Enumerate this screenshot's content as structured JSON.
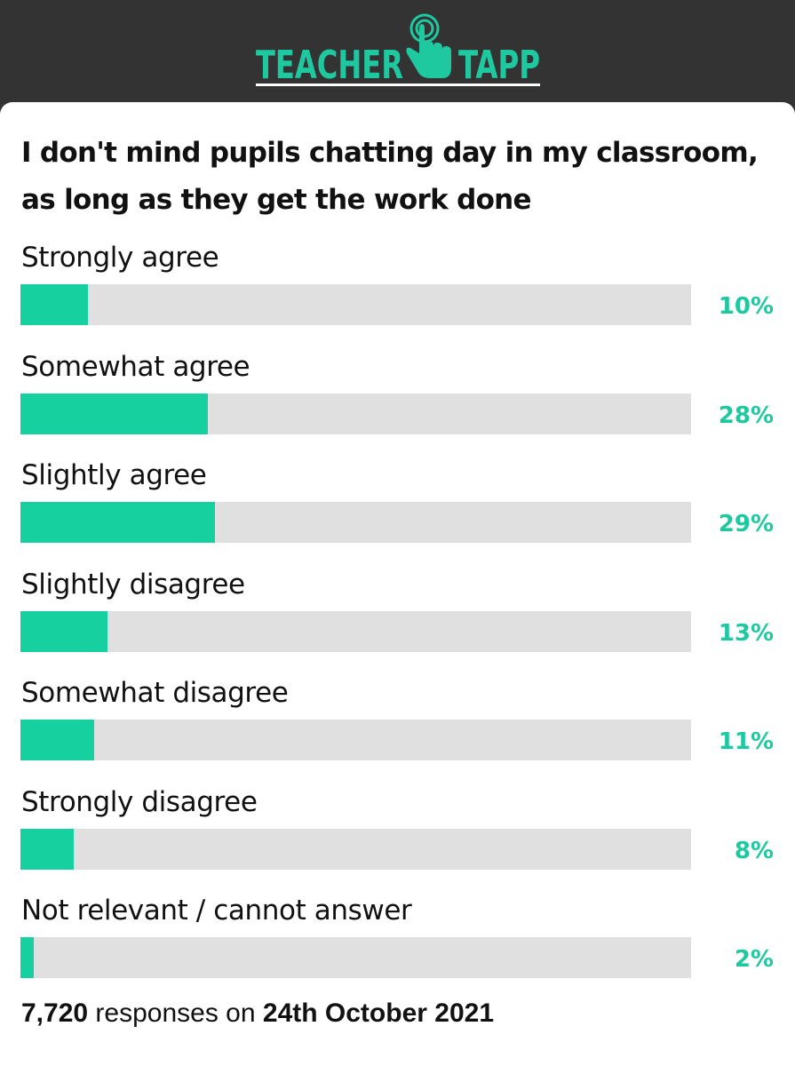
{
  "header": {
    "brand": "TEACHER TAPP",
    "brand_left": "TEACHER",
    "brand_right": "TAPP",
    "brand_color": "#1ec9a0",
    "background_color": "#333333",
    "icon": "tap-finger-icon"
  },
  "question": "I don't mind pupils chatting day in my classroom, as long as they get the work done",
  "footer": {
    "count": "7,720",
    "middle": "responses on",
    "date": "24th October 2021"
  },
  "colors": {
    "bar_fill": "#16d0a0",
    "bar_track": "#e0e0e0",
    "percent_text": "#1ec9a0"
  },
  "chart_data": {
    "type": "bar",
    "orientation": "horizontal",
    "title": "I don't mind pupils chatting day in my classroom, as long as they get the work done",
    "categories": [
      "Strongly agree",
      "Somewhat agree",
      "Slightly agree",
      "Slightly disagree",
      "Somewhat disagree",
      "Strongly disagree",
      "Not relevant / cannot answer"
    ],
    "values": [
      10,
      28,
      29,
      13,
      11,
      8,
      2
    ],
    "labels": [
      "10%",
      "28%",
      "29%",
      "13%",
      "11%",
      "8%",
      "2%"
    ],
    "unit": "%",
    "xlim": [
      0,
      100
    ]
  }
}
